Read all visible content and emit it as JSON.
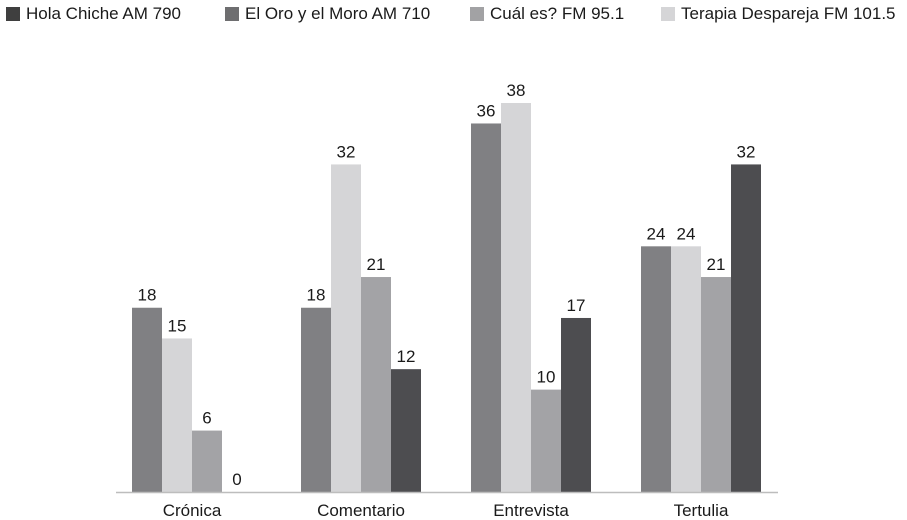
{
  "chart_data": {
    "type": "bar",
    "categories": [
      "Crónica",
      "Comentario",
      "Entrevista",
      "Tertulia"
    ],
    "series": [
      {
        "name": "Hola Chiche AM 790",
        "legend_color": "#3f3f3f"
      },
      {
        "name": "El Oro y el Moro AM 710",
        "legend_color": "#6e6e70"
      },
      {
        "name": "Cuál es? FM 95.1",
        "legend_color": "#a2a2a4"
      },
      {
        "name": "Terapia Despareja FM 101.5",
        "legend_color": "#d5d5d7"
      }
    ],
    "bar_groups": [
      [
        {
          "value": 18,
          "color": "#808083"
        },
        {
          "value": 15,
          "color": "#d5d5d7"
        },
        {
          "value": 6,
          "color": "#a3a3a6"
        },
        {
          "value": 0,
          "color": "#4d4d50"
        }
      ],
      [
        {
          "value": 18,
          "color": "#808083"
        },
        {
          "value": 32,
          "color": "#d5d5d7"
        },
        {
          "value": 21,
          "color": "#a3a3a6"
        },
        {
          "value": 12,
          "color": "#4d4d50"
        }
      ],
      [
        {
          "value": 36,
          "color": "#808083"
        },
        {
          "value": 38,
          "color": "#d5d5d7"
        },
        {
          "value": 10,
          "color": "#a3a3a6"
        },
        {
          "value": 17,
          "color": "#4d4d50"
        }
      ],
      [
        {
          "value": 24,
          "color": "#808083"
        },
        {
          "value": 24,
          "color": "#d5d5d7"
        },
        {
          "value": 21,
          "color": "#a3a3a6"
        },
        {
          "value": 32,
          "color": "#4d4d50"
        }
      ]
    ],
    "ylim": [
      0,
      38
    ],
    "grid": false,
    "legend_position": "top",
    "axis_color": "#bdbdbd"
  }
}
